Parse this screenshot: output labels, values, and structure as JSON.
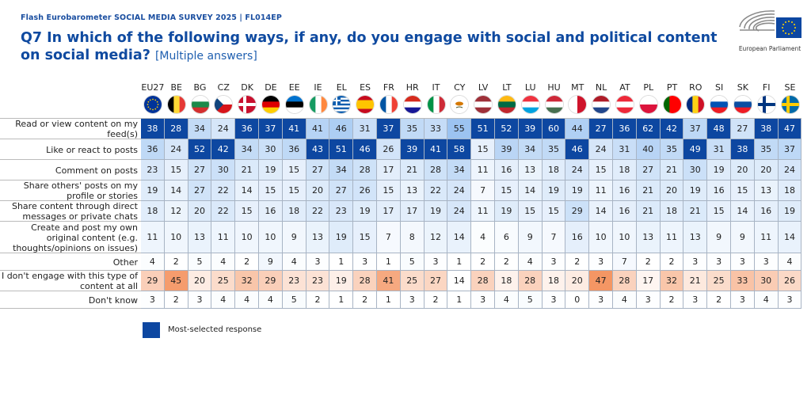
{
  "header": {
    "source": "Flash Eurobarometer SOCIAL MEDIA SURVEY 2025  |   FL014EP",
    "title": "Q7 In which of the following ways, if any, do you engage with social and political content on social media?",
    "subtitle": "[Multiple answers]",
    "logo_text": "European Parliament"
  },
  "legend": {
    "label": "Most-selected response",
    "color": "#0d47a1"
  },
  "chart_data": {
    "type": "heatmap",
    "title": "Q7 In which of the following ways, if any, do you engage with social and political content on social media? [Multiple answers]",
    "unit": "%",
    "categories": [
      "EU27",
      "BE",
      "BG",
      "CZ",
      "DK",
      "DE",
      "EE",
      "IE",
      "EL",
      "ES",
      "FR",
      "HR",
      "IT",
      "CY",
      "LV",
      "LT",
      "LU",
      "HU",
      "MT",
      "NL",
      "AT",
      "PL",
      "PT",
      "RO",
      "SI",
      "SK",
      "FI",
      "SE"
    ],
    "series": [
      {
        "name": "Read or view content on my feed(s)",
        "values": [
          38,
          28,
          34,
          24,
          36,
          37,
          41,
          41,
          46,
          31,
          37,
          35,
          33,
          55,
          51,
          52,
          39,
          60,
          44,
          27,
          36,
          62,
          42,
          37,
          48,
          27,
          38,
          47
        ],
        "palette": "blue"
      },
      {
        "name": "Like or react to posts",
        "values": [
          36,
          24,
          52,
          42,
          34,
          30,
          36,
          43,
          51,
          46,
          26,
          39,
          41,
          58,
          15,
          39,
          34,
          35,
          46,
          24,
          31,
          40,
          35,
          49,
          31,
          38,
          35,
          37
        ],
        "palette": "blue"
      },
      {
        "name": "Comment on posts",
        "values": [
          23,
          15,
          27,
          30,
          21,
          19,
          15,
          27,
          34,
          28,
          17,
          21,
          28,
          34,
          11,
          16,
          13,
          18,
          24,
          15,
          18,
          27,
          21,
          30,
          19,
          20,
          20,
          24
        ],
        "palette": "blue"
      },
      {
        "name": "Share others' posts on my profile or stories",
        "values": [
          19,
          14,
          27,
          22,
          14,
          15,
          15,
          20,
          27,
          26,
          15,
          13,
          22,
          24,
          7,
          15,
          14,
          19,
          19,
          11,
          16,
          21,
          20,
          19,
          16,
          15,
          13,
          18
        ],
        "palette": "blue"
      },
      {
        "name": "Share content through direct messages or private chats",
        "values": [
          18,
          12,
          20,
          22,
          15,
          16,
          18,
          22,
          23,
          19,
          17,
          17,
          19,
          24,
          11,
          19,
          15,
          15,
          29,
          14,
          16,
          21,
          18,
          21,
          15,
          14,
          16,
          19
        ],
        "palette": "blue"
      },
      {
        "name": "Create and post my own original content (e.g. thoughts/opinions on issues)",
        "values": [
          11,
          10,
          13,
          11,
          10,
          10,
          9,
          13,
          19,
          15,
          7,
          8,
          12,
          14,
          4,
          6,
          9,
          7,
          16,
          10,
          10,
          13,
          11,
          13,
          9,
          9,
          11,
          14
        ],
        "palette": "blue"
      },
      {
        "name": "Other",
        "values": [
          4,
          2,
          5,
          4,
          2,
          9,
          4,
          3,
          1,
          3,
          1,
          5,
          3,
          1,
          2,
          2,
          4,
          3,
          2,
          3,
          7,
          2,
          2,
          3,
          3,
          3,
          3,
          4
        ],
        "palette": "blue"
      },
      {
        "name": "I don't engage with this type of content at all",
        "values": [
          29,
          45,
          20,
          25,
          32,
          29,
          23,
          23,
          19,
          28,
          41,
          25,
          27,
          14,
          28,
          18,
          28,
          18,
          20,
          47,
          28,
          17,
          32,
          21,
          25,
          33,
          30,
          26
        ],
        "palette": "orange"
      },
      {
        "name": "Don't know",
        "values": [
          3,
          2,
          3,
          4,
          4,
          4,
          5,
          2,
          1,
          2,
          1,
          3,
          2,
          1,
          3,
          4,
          5,
          3,
          0,
          3,
          4,
          3,
          2,
          3,
          2,
          3,
          4,
          3
        ],
        "palette": "blue"
      }
    ],
    "most_selected": [
      [
        1,
        1,
        0,
        0,
        1,
        1,
        1,
        0,
        0,
        0,
        1,
        0,
        0,
        0,
        1,
        1,
        1,
        1,
        0,
        1,
        1,
        1,
        1,
        0,
        1,
        0,
        1,
        1
      ],
      [
        0,
        0,
        1,
        1,
        0,
        0,
        0,
        1,
        1,
        1,
        0,
        1,
        1,
        1,
        0,
        0,
        0,
        0,
        1,
        0,
        0,
        0,
        0,
        1,
        0,
        1,
        0,
        0
      ]
    ]
  }
}
